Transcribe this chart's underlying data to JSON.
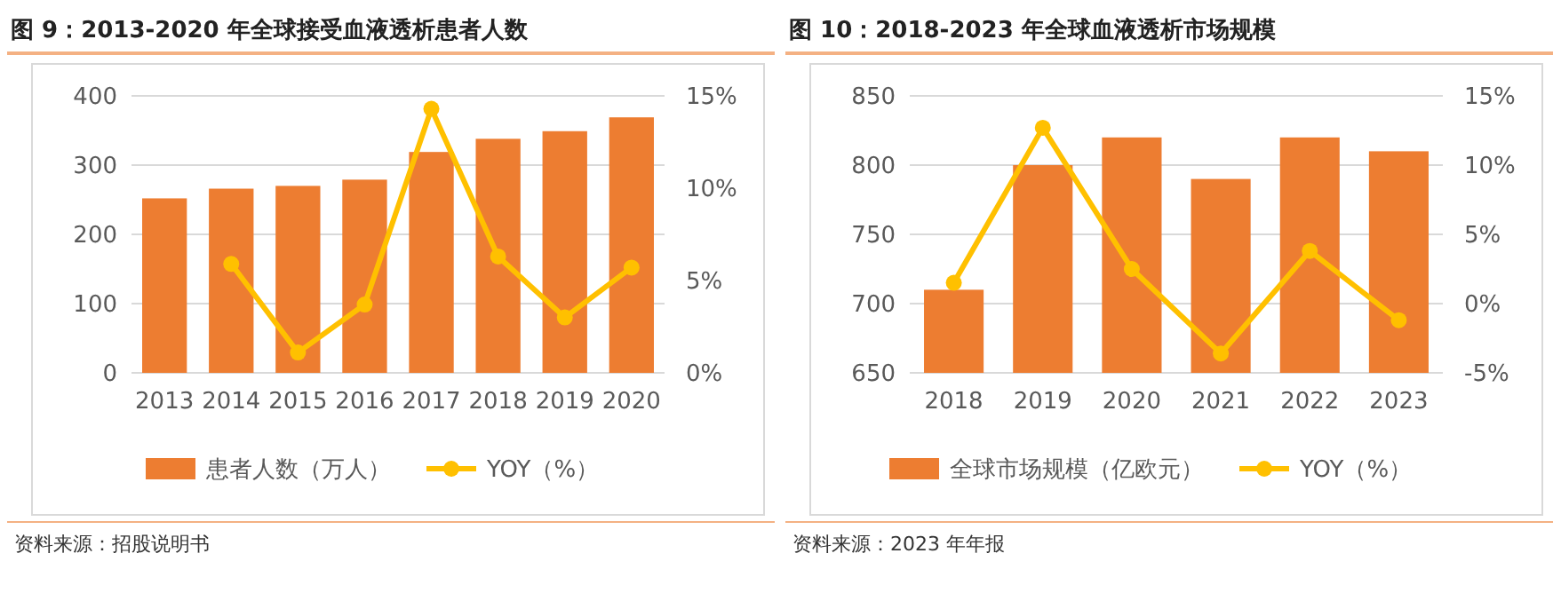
{
  "chart_data": [
    {
      "type": "bar",
      "title": "图 9：2013-2020 年全球接受血液透析患者人数",
      "categories": [
        "2013",
        "2014",
        "2015",
        "2016",
        "2017",
        "2018",
        "2019",
        "2020"
      ],
      "series": [
        {
          "name": "患者人数（万人）",
          "color": "#ed7d31",
          "values": [
            252,
            266,
            270,
            279,
            319,
            338,
            349,
            369
          ]
        },
        {
          "name": "YOY（%）",
          "type": "line",
          "axis": "y2",
          "color": "#ffc000",
          "values": [
            null,
            5.9,
            1.1,
            3.7,
            14.3,
            6.3,
            3.0,
            5.7
          ]
        }
      ],
      "ylim": [
        0,
        400
      ],
      "yticks": [
        0,
        100,
        200,
        300,
        400
      ],
      "y2lim": [
        0,
        15
      ],
      "y2ticks": [
        {
          "value": 0,
          "label": "0%"
        },
        {
          "value": 5,
          "label": "5%"
        },
        {
          "value": 10,
          "label": "10%"
        },
        {
          "value": 15,
          "label": "15%"
        }
      ],
      "grid": "y",
      "legend": "bottom",
      "marker": "circle",
      "annotations": [
        "资料来源：招股说明书"
      ]
    },
    {
      "type": "bar",
      "title": "图 10：2018-2023 年全球血液透析市场规模",
      "categories": [
        "2018",
        "2019",
        "2020",
        "2021",
        "2022",
        "2023"
      ],
      "series": [
        {
          "name": "全球市场规模（亿欧元）",
          "color": "#ed7d31",
          "values": [
            710,
            800,
            820,
            790,
            820,
            810
          ]
        },
        {
          "name": "YOY（%）",
          "type": "line",
          "axis": "y2",
          "color": "#ffc000",
          "values": [
            1.5,
            12.7,
            2.5,
            -3.6,
            3.8,
            -1.2
          ]
        }
      ],
      "ylim": [
        650,
        850
      ],
      "yticks": [
        650,
        700,
        750,
        800,
        850
      ],
      "y2lim": [
        -5,
        15
      ],
      "y2ticks": [
        {
          "value": -5,
          "label": "-5%"
        },
        {
          "value": 0,
          "label": "0%"
        },
        {
          "value": 5,
          "label": "5%"
        },
        {
          "value": 10,
          "label": "10%"
        },
        {
          "value": 15,
          "label": "15%"
        }
      ],
      "grid": "y",
      "legend": "bottom",
      "marker": "circle",
      "annotations": [
        "资料来源：2023 年年报"
      ]
    }
  ]
}
